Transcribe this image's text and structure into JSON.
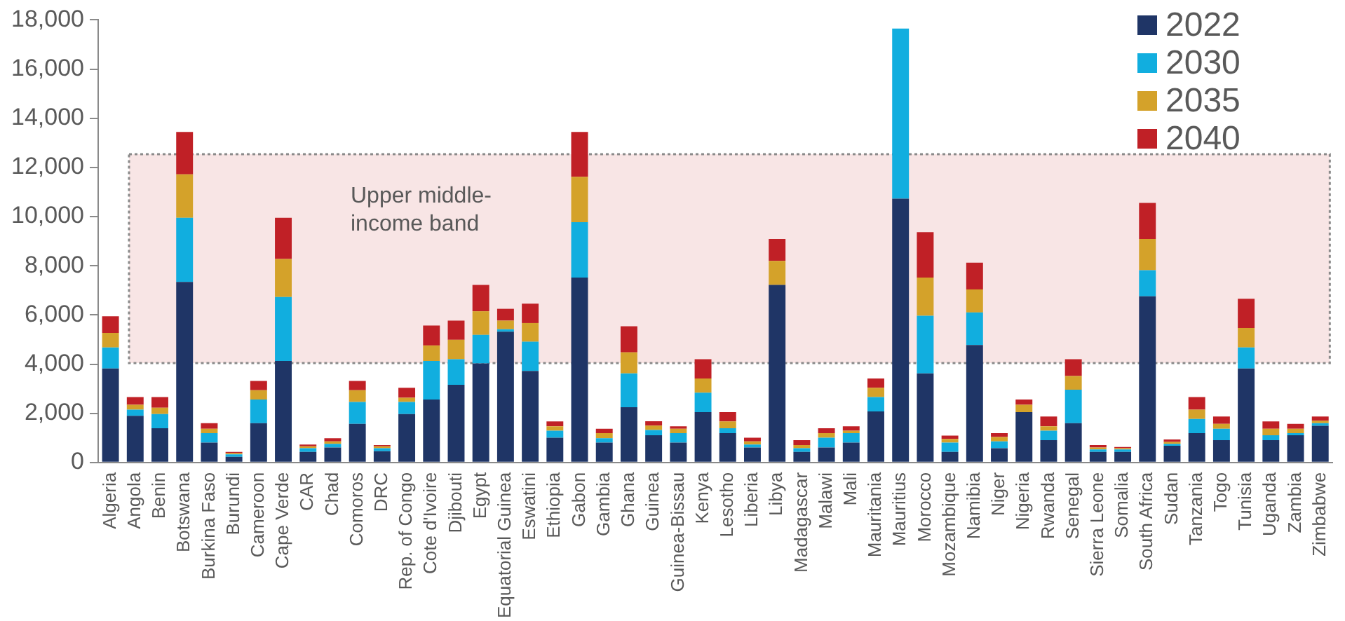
{
  "chart_data": {
    "type": "bar",
    "stacked": true,
    "categories": [
      "Algeria",
      "Angola",
      "Benin",
      "Botswana",
      "Burkina Faso",
      "Burundi",
      "Cameroon",
      "Cape Verde",
      "CAR",
      "Chad",
      "Comoros",
      "DRC",
      "Rep. of Congo",
      "Cote d'Ivoire",
      "Djibouti",
      "Egypt",
      "Equatorial Guinea",
      "Eswatini",
      "Ethiopia",
      "Gabon",
      "Gambia",
      "Ghana",
      "Guinea",
      "Guinea-Bissau",
      "Kenya",
      "Lesotho",
      "Liberia",
      "Libya",
      "Madagascar",
      "Malawi",
      "Mali",
      "Mauritania",
      "Mauritius",
      "Morocco",
      "Mozambique",
      "Namibia",
      "Niger",
      "Nigeria",
      "Rwanda",
      "Senegal",
      "Sierra Leone",
      "Somalia",
      "South Africa",
      "Sudan",
      "Tanzania",
      "Togo",
      "Tunisia",
      "Uganda",
      "Zambia",
      "Zimbabwe"
    ],
    "series": [
      {
        "name": "2022",
        "color": "#1f3566",
        "values": [
          3820,
          1900,
          1390,
          7340,
          810,
          230,
          1600,
          4130,
          430,
          610,
          1570,
          460,
          1970,
          2560,
          3160,
          4030,
          5320,
          3720,
          1010,
          7520,
          810,
          2250,
          1110,
          810,
          2050,
          1190,
          610,
          7220,
          430,
          610,
          810,
          2080,
          10730,
          3620,
          430,
          4780,
          580,
          2050,
          910,
          1600,
          430,
          430,
          6760,
          680,
          1190,
          910,
          3820,
          910,
          1110,
          1490
        ]
      },
      {
        "name": "2030",
        "color": "#11aedf",
        "values": [
          860,
          250,
          580,
          2610,
          380,
          100,
          960,
          2600,
          150,
          150,
          890,
          120,
          490,
          1570,
          1040,
          1160,
          100,
          1190,
          280,
          2250,
          180,
          1370,
          210,
          380,
          790,
          200,
          120,
          0,
          150,
          400,
          380,
          580,
          6920,
          2350,
          380,
          1320,
          280,
          0,
          380,
          1360,
          100,
          100,
          1060,
          80,
          580,
          460,
          860,
          200,
          80,
          110
        ]
      },
      {
        "name": "2035",
        "color": "#d4a22a",
        "values": [
          590,
          200,
          260,
          1770,
          180,
          50,
          380,
          1550,
          80,
          100,
          480,
          80,
          170,
          630,
          790,
          960,
          350,
          760,
          180,
          1850,
          200,
          860,
          180,
          180,
          580,
          280,
          130,
          980,
          130,
          180,
          100,
          380,
          0,
          1550,
          150,
          940,
          180,
          300,
          180,
          560,
          80,
          50,
          1270,
          80,
          380,
          200,
          790,
          260,
          180,
          100
        ]
      },
      {
        "name": "2040",
        "color": "#c02026",
        "values": [
          680,
          310,
          430,
          1720,
          230,
          50,
          380,
          1670,
          70,
          130,
          380,
          50,
          410,
          810,
          780,
          1070,
          480,
          790,
          200,
          1820,
          180,
          1060,
          180,
          100,
          780,
          380,
          150,
          890,
          200,
          200,
          180,
          380,
          0,
          1850,
          130,
          1090,
          150,
          210,
          400,
          680,
          100,
          50,
          1470,
          100,
          510,
          300,
          1190,
          300,
          200,
          170
        ]
      }
    ],
    "ylim": [
      0,
      18000
    ],
    "yticks": [
      {
        "value": 0,
        "label": "0"
      },
      {
        "value": 2000,
        "label": "2,000"
      },
      {
        "value": 4000,
        "label": "4,000"
      },
      {
        "value": 6000,
        "label": "6,000"
      },
      {
        "value": 8000,
        "label": "8,000"
      },
      {
        "value": 10000,
        "label": "10,000"
      },
      {
        "value": 12000,
        "label": "12,000"
      },
      {
        "value": 14000,
        "label": "14,000"
      },
      {
        "value": 16000,
        "label": "16,000"
      },
      {
        "value": 18000,
        "label": "18,000"
      }
    ],
    "grid": false,
    "legend": "top right",
    "bands": [
      {
        "axis": "y",
        "from": 4046,
        "to": 12535,
        "label": "Upper middle-income band",
        "color": "#f8e5e5"
      }
    ]
  }
}
